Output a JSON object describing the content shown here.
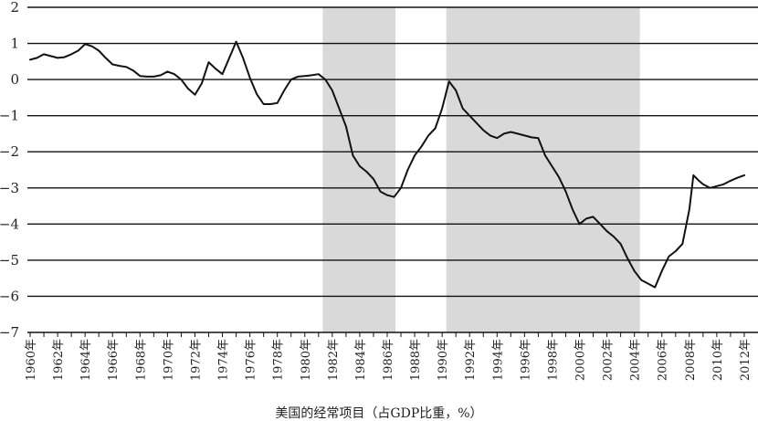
{
  "chart_data": {
    "type": "line",
    "caption": "美国的经常项目（占GDP比重，%）",
    "ylim": [
      -7,
      2
    ],
    "yticks": [
      "2",
      "1",
      "0",
      "−1",
      "−2",
      "−3",
      "−4",
      "−5",
      "−6",
      "−7"
    ],
    "xlim": [
      1959.8,
      2013
    ],
    "xtick_labels": [
      "1960年",
      "1962年",
      "1964年",
      "1966年",
      "1968年",
      "1970年",
      "1972年",
      "1974年",
      "1976年",
      "1978年",
      "1980年",
      "1982年",
      "1984年",
      "1986年",
      "1988年",
      "1990年",
      "1992年",
      "1994年",
      "1996年",
      "1998年",
      "2000年",
      "2002年",
      "2004年",
      "2006年",
      "2008年",
      "2010年",
      "2012年"
    ],
    "xtick_values": [
      1960,
      1962,
      1964,
      1966,
      1968,
      1970,
      1972,
      1974,
      1976,
      1978,
      1980,
      1982,
      1984,
      1986,
      1988,
      1990,
      1992,
      1994,
      1996,
      1998,
      2000,
      2002,
      2004,
      2006,
      2008,
      2010,
      2012
    ],
    "shaded_ranges": [
      [
        1981.3,
        1986.6
      ],
      [
        1990.3,
        2004.4
      ]
    ],
    "grid": "horizontal",
    "colors": {
      "line": "#111111",
      "shade": "#d9d9d9",
      "grid": "#111111"
    },
    "series": [
      {
        "points": [
          [
            1960,
            0.55
          ],
          [
            1960.5,
            0.6
          ],
          [
            1961,
            0.7
          ],
          [
            1961.5,
            0.65
          ],
          [
            1962,
            0.6
          ],
          [
            1962.5,
            0.62
          ],
          [
            1963,
            0.7
          ],
          [
            1963.5,
            0.8
          ],
          [
            1964,
            0.98
          ],
          [
            1964.5,
            0.92
          ],
          [
            1965,
            0.8
          ],
          [
            1965.5,
            0.6
          ],
          [
            1966,
            0.42
          ],
          [
            1966.5,
            0.38
          ],
          [
            1967,
            0.35
          ],
          [
            1967.5,
            0.25
          ],
          [
            1968,
            0.1
          ],
          [
            1968.5,
            0.08
          ],
          [
            1969,
            0.08
          ],
          [
            1969.5,
            0.12
          ],
          [
            1970,
            0.22
          ],
          [
            1970.5,
            0.15
          ],
          [
            1971,
            0
          ],
          [
            1971.5,
            -0.25
          ],
          [
            1972,
            -0.42
          ],
          [
            1972.5,
            -0.1
          ],
          [
            1973,
            0.48
          ],
          [
            1973.5,
            0.3
          ],
          [
            1974,
            0.15
          ],
          [
            1974.5,
            0.6
          ],
          [
            1975,
            1.05
          ],
          [
            1975.5,
            0.6
          ],
          [
            1976,
            0.05
          ],
          [
            1976.5,
            -0.4
          ],
          [
            1977,
            -0.68
          ],
          [
            1977.5,
            -0.68
          ],
          [
            1978,
            -0.65
          ],
          [
            1978.5,
            -0.3
          ],
          [
            1979,
            0
          ],
          [
            1979.5,
            0.08
          ],
          [
            1980,
            0.1
          ],
          [
            1980.5,
            0.12
          ],
          [
            1981,
            0.15
          ],
          [
            1981.5,
            0
          ],
          [
            1982,
            -0.3
          ],
          [
            1982.5,
            -0.8
          ],
          [
            1983,
            -1.3
          ],
          [
            1983.5,
            -2.1
          ],
          [
            1984,
            -2.4
          ],
          [
            1984.5,
            -2.55
          ],
          [
            1985,
            -2.75
          ],
          [
            1985.5,
            -3.1
          ],
          [
            1986,
            -3.2
          ],
          [
            1986.5,
            -3.25
          ],
          [
            1987,
            -3.0
          ],
          [
            1987.5,
            -2.5
          ],
          [
            1988,
            -2.1
          ],
          [
            1988.5,
            -1.85
          ],
          [
            1989,
            -1.55
          ],
          [
            1989.5,
            -1.35
          ],
          [
            1990,
            -0.8
          ],
          [
            1990.5,
            -0.05
          ],
          [
            1991,
            -0.3
          ],
          [
            1991.5,
            -0.8
          ],
          [
            1992,
            -1.0
          ],
          [
            1992.5,
            -1.2
          ],
          [
            1993,
            -1.4
          ],
          [
            1993.5,
            -1.55
          ],
          [
            1994,
            -1.62
          ],
          [
            1994.5,
            -1.5
          ],
          [
            1995,
            -1.45
          ],
          [
            1995.5,
            -1.5
          ],
          [
            1996,
            -1.55
          ],
          [
            1996.5,
            -1.6
          ],
          [
            1997,
            -1.62
          ],
          [
            1997.5,
            -2.1
          ],
          [
            1998,
            -2.4
          ],
          [
            1998.5,
            -2.7
          ],
          [
            1999,
            -3.1
          ],
          [
            1999.5,
            -3.6
          ],
          [
            2000,
            -4.0
          ],
          [
            2000.5,
            -3.85
          ],
          [
            2001,
            -3.8
          ],
          [
            2001.5,
            -4.0
          ],
          [
            2002,
            -4.2
          ],
          [
            2002.5,
            -4.35
          ],
          [
            2003,
            -4.55
          ],
          [
            2003.5,
            -4.95
          ],
          [
            2004,
            -5.3
          ],
          [
            2004.5,
            -5.55
          ],
          [
            2005,
            -5.65
          ],
          [
            2005.5,
            -5.75
          ],
          [
            2006,
            -5.3
          ],
          [
            2006.5,
            -4.9
          ],
          [
            2007,
            -4.75
          ],
          [
            2007.5,
            -4.55
          ],
          [
            2008,
            -3.6
          ],
          [
            2008.3,
            -2.65
          ],
          [
            2008.7,
            -2.8
          ],
          [
            2009,
            -2.9
          ],
          [
            2009.5,
            -3.0
          ],
          [
            2010,
            -2.95
          ],
          [
            2010.5,
            -2.9
          ],
          [
            2011,
            -2.8
          ],
          [
            2011.5,
            -2.72
          ],
          [
            2012,
            -2.65
          ]
        ]
      }
    ]
  }
}
